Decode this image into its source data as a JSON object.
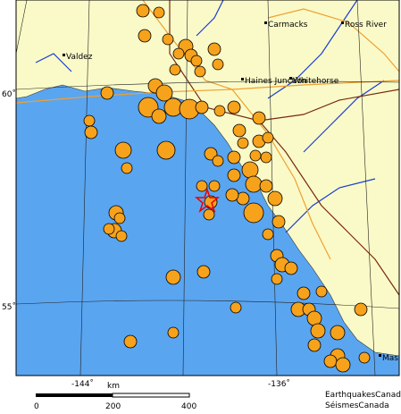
{
  "places": [
    {
      "label": "Carmacks"
    },
    {
      "label": "Ross River"
    },
    {
      "label": "Valdez"
    },
    {
      "label": "Haines Junction"
    },
    {
      "label": "Whitehorse"
    },
    {
      "label": "Mass"
    }
  ],
  "graticule": {
    "lat_labels": [
      "60˚",
      "55˚"
    ],
    "lon_labels": [
      "-144˚",
      "-136˚"
    ]
  },
  "scale": {
    "unit": "km",
    "ticks": [
      "0",
      "200",
      "400"
    ]
  },
  "credits": [
    "EarthquakesCanada",
    "SéismesCanada"
  ]
}
